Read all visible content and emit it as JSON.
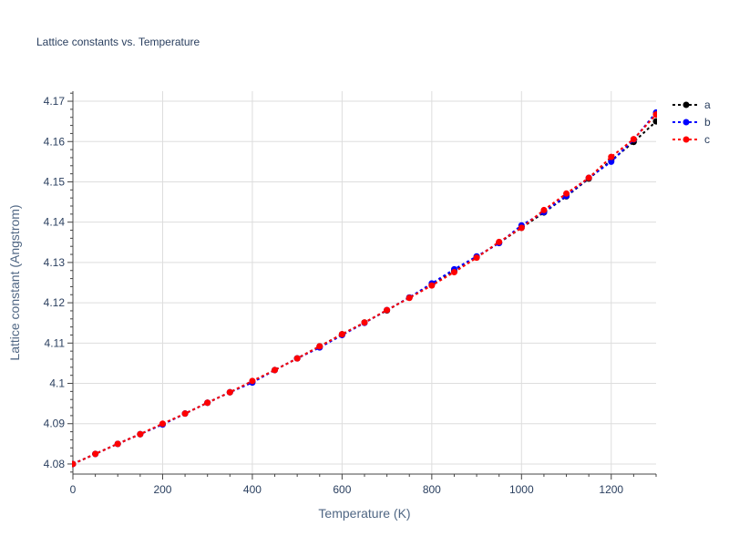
{
  "chart_data": {
    "type": "line",
    "title": "Lattice constants vs. Temperature",
    "xlabel": "Temperature (K)",
    "ylabel": "Lattice constant (Angstrom)",
    "xlim": [
      0,
      1300
    ],
    "ylim": [
      4.0775,
      4.1725
    ],
    "xticks": [
      0,
      200,
      400,
      600,
      800,
      1000,
      1200
    ],
    "yticks": [
      4.08,
      4.09,
      4.1,
      4.11,
      4.12,
      4.13,
      4.14,
      4.15,
      4.16,
      4.17
    ],
    "x": [
      0,
      50,
      100,
      150,
      200,
      250,
      300,
      350,
      400,
      450,
      500,
      550,
      600,
      650,
      700,
      750,
      800,
      850,
      900,
      950,
      1000,
      1050,
      1100,
      1150,
      1200,
      1250,
      1300
    ],
    "series": [
      {
        "name": "a",
        "color": "#000000",
        "values": [
          4.08,
          4.0825,
          4.085,
          4.0874,
          4.0899,
          4.0925,
          4.0952,
          4.0978,
          4.1004,
          4.1033,
          4.1062,
          4.1092,
          4.1122,
          4.1151,
          4.1181,
          4.1213,
          4.1245,
          4.1278,
          4.1313,
          4.1349,
          4.1386,
          4.1424,
          4.1464,
          4.1508,
          4.1553,
          4.1599,
          4.165
        ]
      },
      {
        "name": "b",
        "color": "#0000ff",
        "values": [
          4.08,
          4.0825,
          4.085,
          4.0874,
          4.0898,
          4.0925,
          4.0952,
          4.0978,
          4.1002,
          4.1033,
          4.1062,
          4.1089,
          4.112,
          4.115,
          4.1182,
          4.1213,
          4.1248,
          4.1283,
          4.1315,
          4.1348,
          4.1392,
          4.1425,
          4.1465,
          4.151,
          4.155,
          4.1605,
          4.1672
        ]
      },
      {
        "name": "c",
        "color": "#ff0000",
        "values": [
          4.08,
          4.0825,
          4.085,
          4.0874,
          4.09,
          4.0925,
          4.0952,
          4.0978,
          4.1006,
          4.1033,
          4.1062,
          4.1092,
          4.1122,
          4.1151,
          4.1182,
          4.1212,
          4.1243,
          4.1276,
          4.1312,
          4.1351,
          4.1386,
          4.143,
          4.1471,
          4.151,
          4.1562,
          4.1606,
          4.1667
        ]
      }
    ],
    "grid": true,
    "legend_position": "top-right"
  }
}
